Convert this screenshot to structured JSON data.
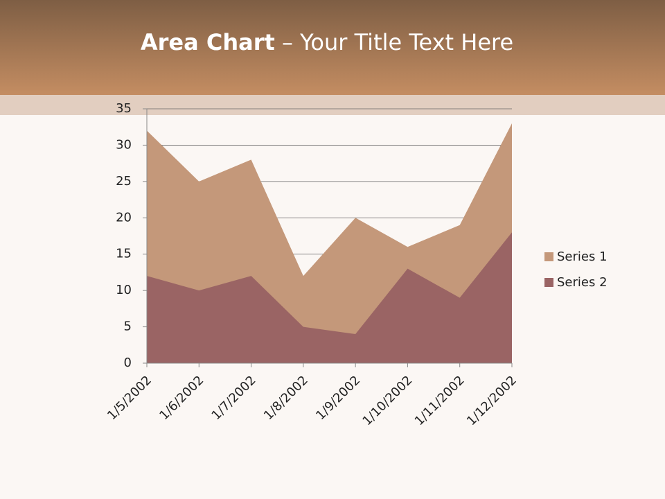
{
  "chart_data": {
    "type": "area",
    "title_parts": [
      "Area Chart",
      "– Your Title Text Here"
    ],
    "categories": [
      "1/5/2002",
      "1/6/2002",
      "1/7/2002",
      "1/8/2002",
      "1/9/2002",
      "1/10/2002",
      "1/11/2002",
      "1/12/2002"
    ],
    "series": [
      {
        "name": "Series 1",
        "color": "#c4987a",
        "values": [
          32,
          25,
          28,
          12,
          20,
          16,
          19,
          33
        ]
      },
      {
        "name": "Series 2",
        "color": "#9a6464",
        "values": [
          12,
          10,
          12,
          5,
          4,
          13,
          9,
          18
        ]
      }
    ],
    "ylim": [
      0,
      35
    ],
    "yticks": [
      0,
      5,
      10,
      15,
      20,
      25,
      30,
      35
    ],
    "grid": true,
    "legend": "right"
  }
}
